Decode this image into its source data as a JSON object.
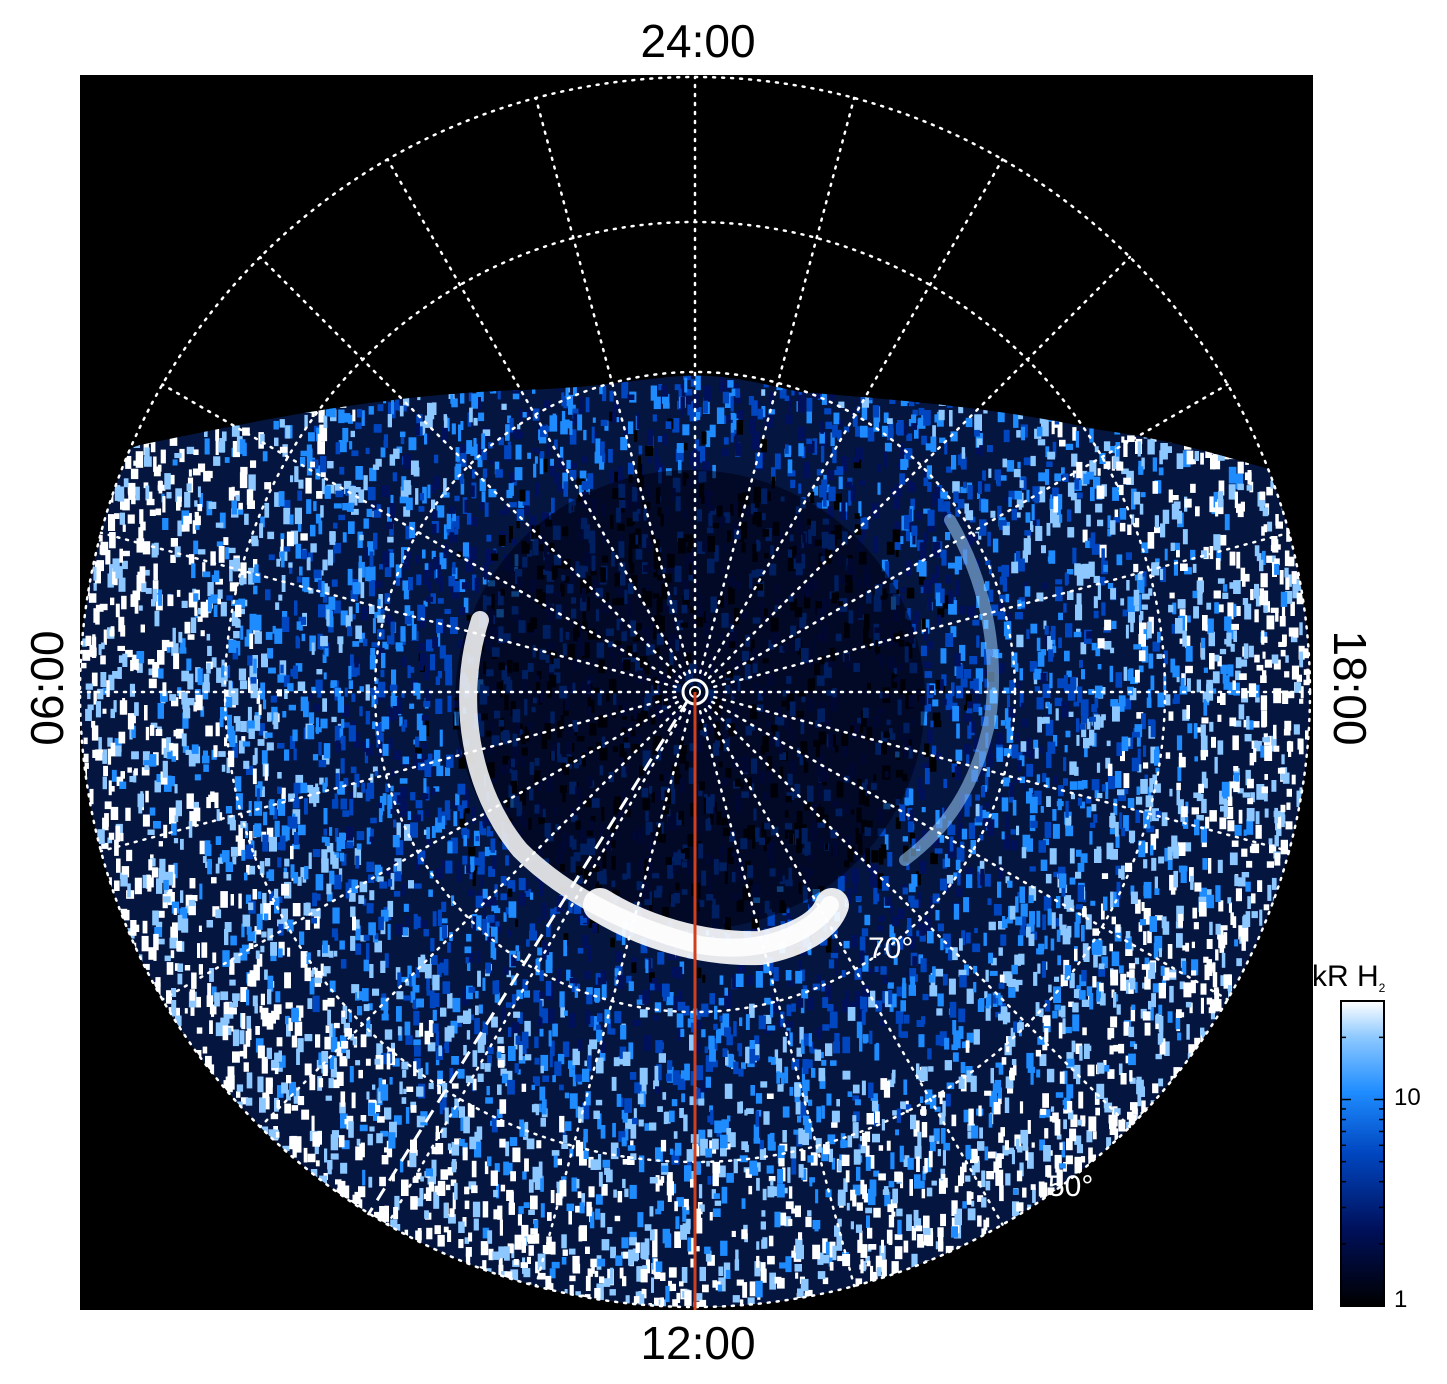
{
  "labels": {
    "top": "24:00",
    "bottom": "12:00",
    "left": "06:00",
    "right": "18:00",
    "lat_70": "70°",
    "lat_50": "50°"
  },
  "colorbar": {
    "unit": "kR H",
    "subscript": "2",
    "ticks": [
      "10",
      "1"
    ],
    "colors": [
      "#000000",
      "#00105a",
      "#0046c0",
      "#1e8cff",
      "#8cc8ff",
      "#ffffff"
    ]
  },
  "colors": {
    "background": "#000000",
    "grid": "#ffffff",
    "meridian_line": "#d0401e"
  }
}
